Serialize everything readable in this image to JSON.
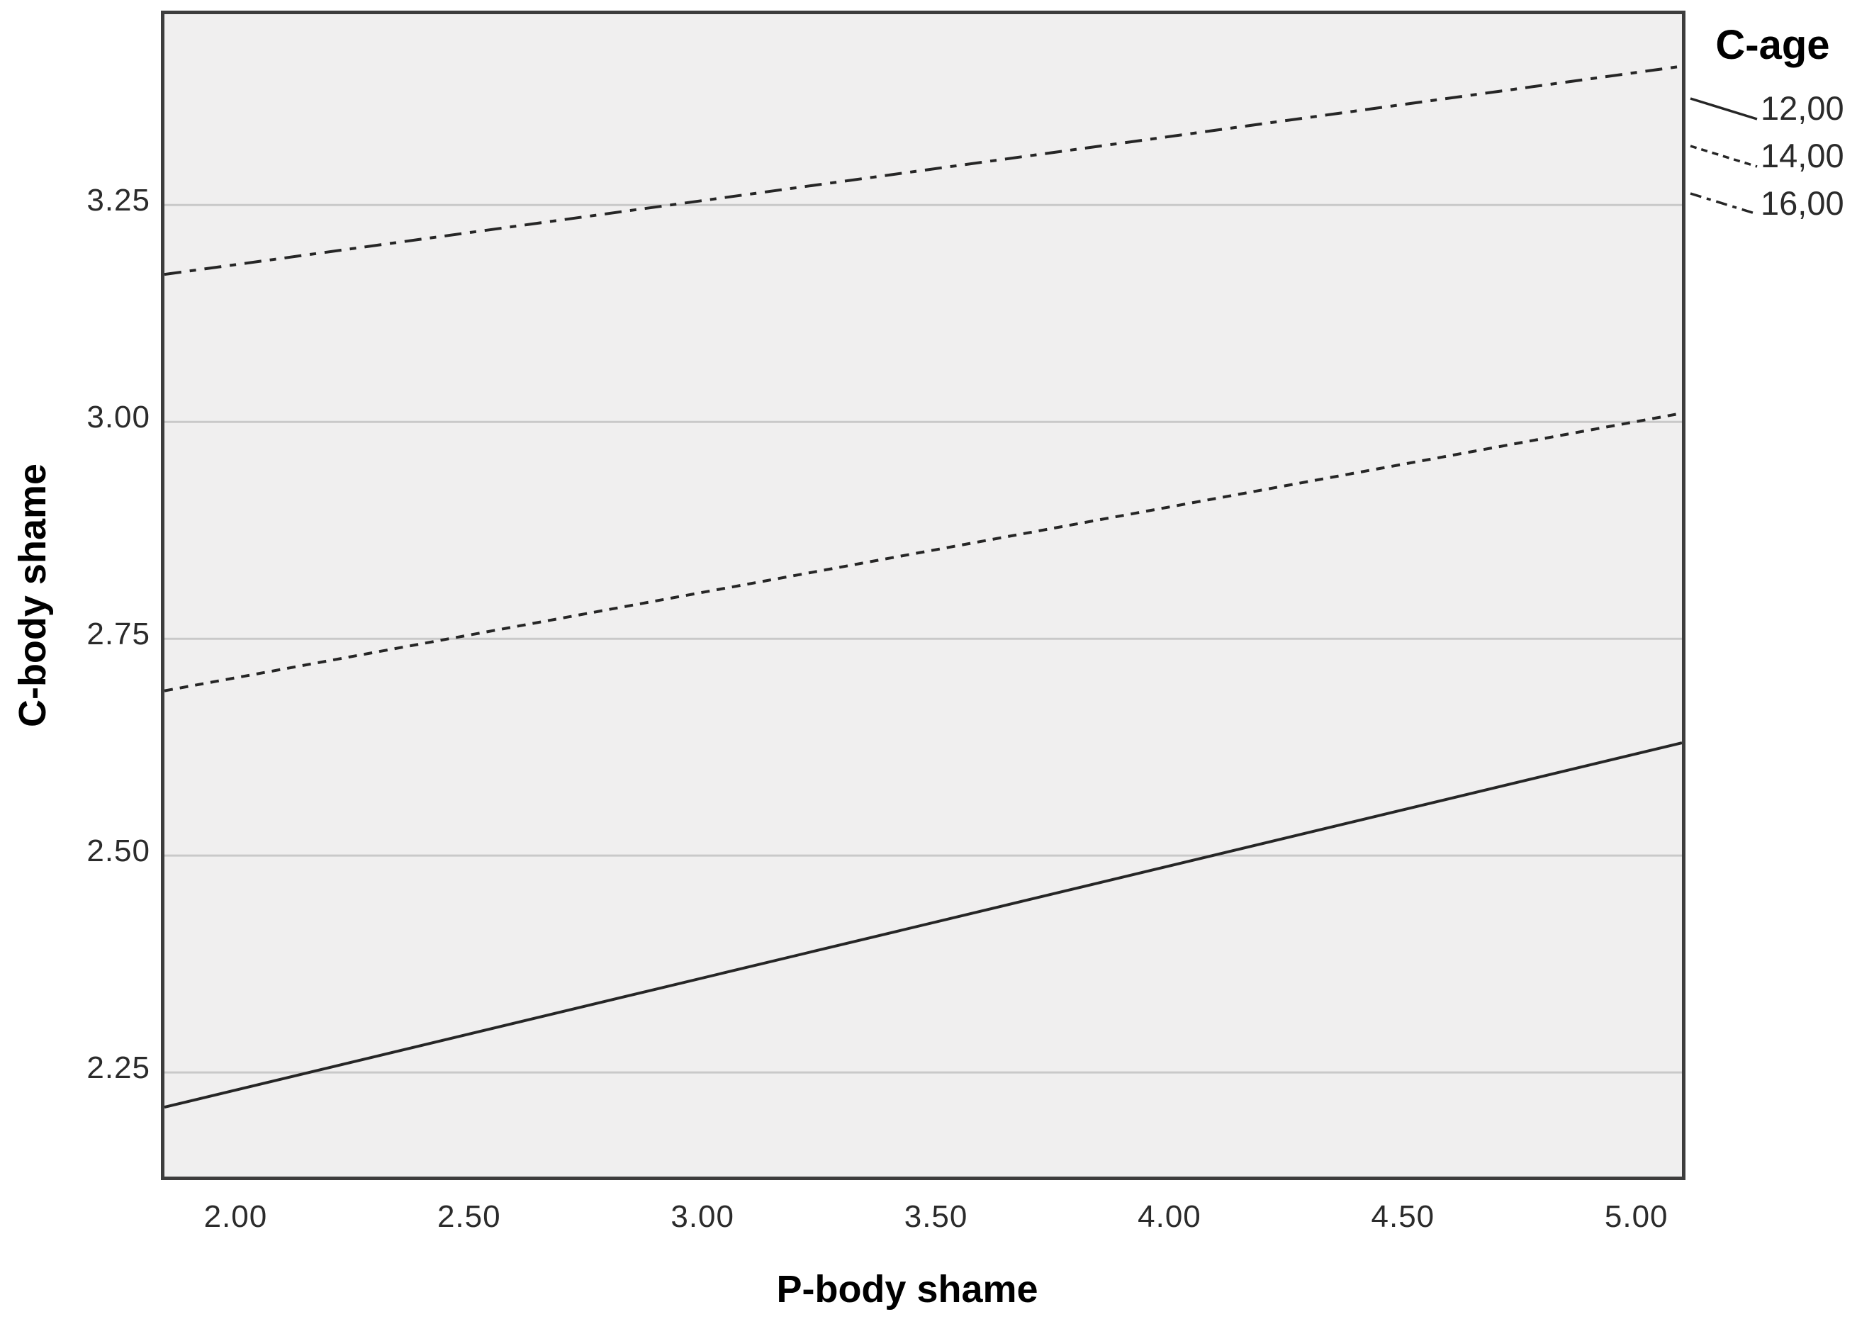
{
  "figure": {
    "x_axis_title": "P-body shame",
    "y_axis_title": "C-body shame",
    "legend_title": "C-age"
  },
  "colors": {
    "plot_background": "#f0efef",
    "plot_border": "#3d3d3d",
    "gridline": "#c9c9c9",
    "line": "#262626",
    "text": "#1a1a1a"
  },
  "chart_data": {
    "type": "line",
    "title": "",
    "xlabel": "P-body shame",
    "ylabel": "C-body shame",
    "legend_title": "C-age",
    "legend_position": "top-right-outside",
    "grid": "horizontal-only",
    "xlim": [
      1.84,
      5.09
    ],
    "ylim": [
      2.13,
      3.47
    ],
    "x_ticks": [
      2.0,
      2.5,
      3.0,
      3.5,
      4.0,
      4.5,
      5.0
    ],
    "x_tick_labels": [
      "2.00",
      "2.50",
      "3.00",
      "3.50",
      "4.00",
      "4.50",
      "5.00"
    ],
    "y_ticks": [
      2.25,
      2.5,
      2.75,
      3.0,
      3.25
    ],
    "y_tick_labels": [
      "2.25",
      "2.50",
      "2.75",
      "3.00",
      "3.25"
    ],
    "series": [
      {
        "name": "12,00",
        "style": "solid",
        "x": [
          1.84,
          5.09
        ],
        "y": [
          2.21,
          2.63
        ]
      },
      {
        "name": "14,00",
        "style": "dotted",
        "x": [
          1.84,
          5.09
        ],
        "y": [
          2.69,
          3.01
        ]
      },
      {
        "name": "16,00",
        "style": "dash-dot",
        "x": [
          1.84,
          5.09
        ],
        "y": [
          3.17,
          3.41
        ]
      }
    ]
  }
}
